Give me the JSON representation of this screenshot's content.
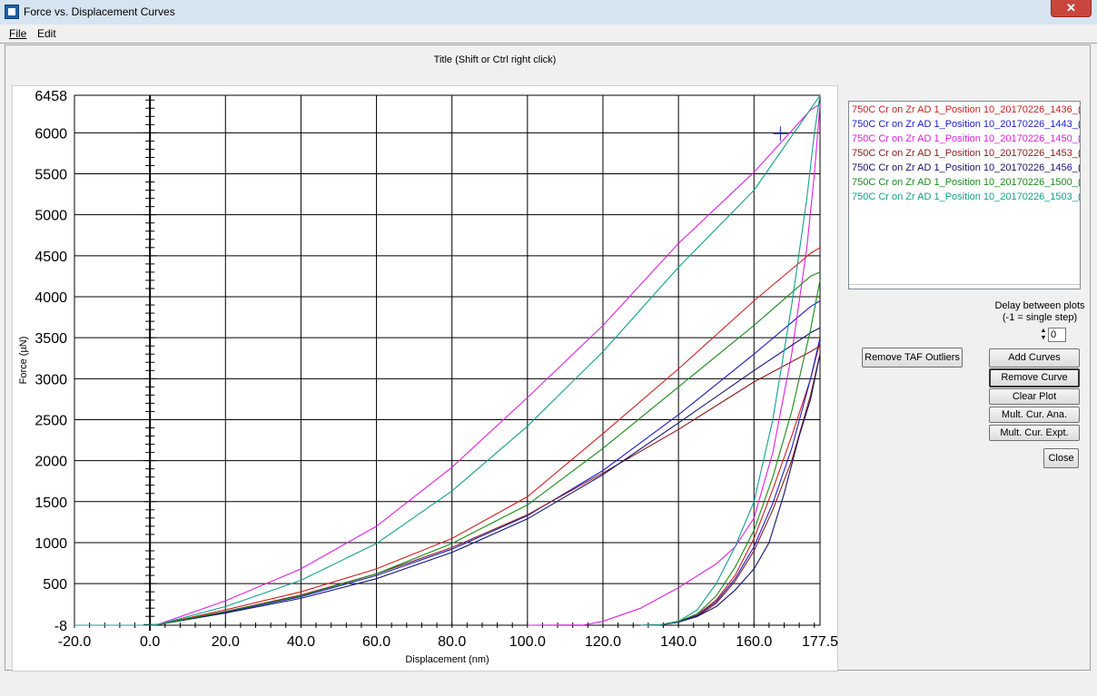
{
  "window": {
    "title": "Force vs. Displacement Curves",
    "close_glyph": "✕"
  },
  "menu": {
    "items": [
      "File",
      "Edit"
    ]
  },
  "plot_title_hint": "Title  (Shift or Ctrl right click)",
  "curve_list": [
    {
      "label": "750C Cr on Zr AD 1_Position 10_20170226_1436_(",
      "color": "#d21e1e"
    },
    {
      "label": "750C Cr on Zr AD 1_Position 10_20170226_1443_(",
      "color": "#1d1dc8"
    },
    {
      "label": "750C Cr on Zr AD 1_Position 10_20170226_1450_(",
      "color": "#e020e0"
    },
    {
      "label": "750C Cr on Zr AD 1_Position 10_20170226_1453_(",
      "color": "#8b1a1a"
    },
    {
      "label": "750C Cr on Zr AD 1_Position 10_20170226_1456_(",
      "color": "#14146e"
    },
    {
      "label": "750C Cr on Zr AD 1_Position 10_20170226_1500_(",
      "color": "#1a8a1a"
    },
    {
      "label": "750C Cr on Zr AD 1_Position 10_20170226_1503_(",
      "color": "#12a08c"
    }
  ],
  "delay": {
    "line1": "Delay between plots",
    "line2": "(-1 = single step)",
    "value": "0"
  },
  "buttons": {
    "remove_taf": "Remove TAF Outliers",
    "add_curves": "Add Curves",
    "remove_curve": "Remove Curve",
    "clear_plot": "Clear Plot",
    "mult_ana": "Mult. Cur. Ana.",
    "mult_expt": "Mult. Cur. Expt.",
    "close": "Close"
  },
  "chart_data": {
    "type": "line",
    "xlabel": "Displacement (nm)",
    "ylabel": "Force (µN)",
    "xlim": [
      -20.0,
      177.5
    ],
    "ylim": [
      -8,
      6458
    ],
    "x_ticks": [
      "-20.0",
      "0.0",
      "20.0",
      "40.0",
      "60.0",
      "80.0",
      "100.0",
      "120.0",
      "140.0",
      "160.0",
      "177.5"
    ],
    "x_tick_values": [
      -20,
      0,
      20,
      40,
      60,
      80,
      100,
      120,
      140,
      160,
      177.5
    ],
    "y_ticks": [
      "-8",
      "500",
      "1000",
      "1500",
      "2000",
      "2500",
      "3000",
      "3500",
      "4000",
      "4500",
      "5000",
      "5500",
      "6000",
      "6458"
    ],
    "y_tick_values": [
      -8,
      500,
      1000,
      1500,
      2000,
      2500,
      3000,
      3500,
      4000,
      4500,
      5000,
      5500,
      6000,
      6458
    ],
    "grid": true,
    "cursor_marker": {
      "x": 167,
      "y": 5990
    },
    "series": [
      {
        "color": "#d21e1e",
        "loading": [
          [
            -20,
            -8
          ],
          [
            0,
            -8
          ],
          [
            2,
            0
          ],
          [
            20,
            180
          ],
          [
            40,
            400
          ],
          [
            60,
            680
          ],
          [
            80,
            1050
          ],
          [
            100,
            1560
          ],
          [
            120,
            2330
          ],
          [
            140,
            3120
          ],
          [
            160,
            3950
          ],
          [
            175,
            4530
          ],
          [
            177.5,
            4600
          ]
        ],
        "unloading": [
          [
            177.5,
            3450
          ],
          [
            175,
            3000
          ],
          [
            170,
            2300
          ],
          [
            165,
            1650
          ],
          [
            160,
            1050
          ],
          [
            155,
            600
          ],
          [
            150,
            300
          ],
          [
            145,
            120
          ],
          [
            140,
            40
          ],
          [
            135,
            -5
          ],
          [
            130,
            -8
          ]
        ]
      },
      {
        "color": "#1d1dc8",
        "loading": [
          [
            -20,
            -8
          ],
          [
            0,
            -8
          ],
          [
            2,
            0
          ],
          [
            20,
            150
          ],
          [
            40,
            340
          ],
          [
            60,
            600
          ],
          [
            80,
            920
          ],
          [
            100,
            1330
          ],
          [
            120,
            1880
          ],
          [
            140,
            2560
          ],
          [
            160,
            3300
          ],
          [
            175,
            3880
          ],
          [
            177.5,
            3950
          ]
        ],
        "unloading": [
          [
            177.5,
            3500
          ],
          [
            175,
            3000
          ],
          [
            170,
            2150
          ],
          [
            165,
            1480
          ],
          [
            160,
            950
          ],
          [
            155,
            560
          ],
          [
            150,
            280
          ],
          [
            145,
            110
          ],
          [
            140,
            30
          ],
          [
            135,
            -5
          ],
          [
            130,
            -8
          ]
        ]
      },
      {
        "color": "#e020e0",
        "loading": [
          [
            -20,
            -8
          ],
          [
            0,
            -8
          ],
          [
            2,
            0
          ],
          [
            20,
            290
          ],
          [
            40,
            680
          ],
          [
            60,
            1200
          ],
          [
            80,
            1920
          ],
          [
            100,
            2770
          ],
          [
            120,
            3650
          ],
          [
            140,
            4650
          ],
          [
            160,
            5520
          ],
          [
            175,
            6280
          ],
          [
            177.5,
            6350
          ]
        ],
        "unloading": [
          [
            177.5,
            6350
          ],
          [
            176,
            5500
          ],
          [
            174,
            4600
          ],
          [
            170,
            3300
          ],
          [
            165,
            2100
          ],
          [
            160,
            1300
          ],
          [
            155,
            950
          ],
          [
            150,
            740
          ],
          [
            140,
            450
          ],
          [
            130,
            200
          ],
          [
            120,
            40
          ],
          [
            115,
            -5
          ],
          [
            100,
            -8
          ]
        ]
      },
      {
        "color": "#8b1a1a",
        "loading": [
          [
            -20,
            -8
          ],
          [
            0,
            -8
          ],
          [
            2,
            0
          ],
          [
            20,
            160
          ],
          [
            40,
            360
          ],
          [
            60,
            620
          ],
          [
            80,
            940
          ],
          [
            100,
            1340
          ],
          [
            120,
            1850
          ],
          [
            140,
            2380
          ],
          [
            160,
            2960
          ],
          [
            175,
            3330
          ],
          [
            177.5,
            3400
          ]
        ],
        "unloading": [
          [
            177.5,
            3300
          ],
          [
            175,
            2800
          ],
          [
            170,
            2000
          ],
          [
            165,
            1400
          ],
          [
            160,
            900
          ],
          [
            155,
            530
          ],
          [
            150,
            260
          ],
          [
            145,
            100
          ],
          [
            140,
            30
          ],
          [
            135,
            -5
          ],
          [
            130,
            -8
          ]
        ]
      },
      {
        "color": "#14146e",
        "loading": [
          [
            -20,
            -8
          ],
          [
            0,
            -8
          ],
          [
            2,
            0
          ],
          [
            20,
            140
          ],
          [
            40,
            320
          ],
          [
            60,
            560
          ],
          [
            80,
            880
          ],
          [
            100,
            1290
          ],
          [
            120,
            1830
          ],
          [
            140,
            2460
          ],
          [
            160,
            3100
          ],
          [
            175,
            3560
          ],
          [
            177.5,
            3620
          ]
        ],
        "unloading": [
          [
            177.5,
            3300
          ],
          [
            175,
            2750
          ],
          [
            172,
            2300
          ],
          [
            168,
            1600
          ],
          [
            164,
            1000
          ],
          [
            160,
            680
          ],
          [
            155,
            420
          ],
          [
            150,
            220
          ],
          [
            145,
            100
          ],
          [
            140,
            30
          ],
          [
            135,
            -5
          ],
          [
            130,
            -8
          ]
        ]
      },
      {
        "color": "#1a8a1a",
        "loading": [
          [
            -20,
            -8
          ],
          [
            0,
            -8
          ],
          [
            2,
            0
          ],
          [
            20,
            160
          ],
          [
            40,
            350
          ],
          [
            60,
            620
          ],
          [
            80,
            990
          ],
          [
            100,
            1460
          ],
          [
            120,
            2150
          ],
          [
            140,
            2900
          ],
          [
            160,
            3650
          ],
          [
            175,
            4250
          ],
          [
            177.5,
            4300
          ]
        ],
        "unloading": [
          [
            177.5,
            4200
          ],
          [
            175,
            3600
          ],
          [
            170,
            2600
          ],
          [
            165,
            1800
          ],
          [
            160,
            1150
          ],
          [
            155,
            700
          ],
          [
            150,
            350
          ],
          [
            145,
            130
          ],
          [
            140,
            40
          ],
          [
            135,
            -5
          ],
          [
            130,
            -8
          ]
        ]
      },
      {
        "color": "#12a08c",
        "loading": [
          [
            -20,
            -8
          ],
          [
            0,
            -8
          ],
          [
            2,
            0
          ],
          [
            20,
            220
          ],
          [
            40,
            540
          ],
          [
            60,
            990
          ],
          [
            80,
            1630
          ],
          [
            100,
            2420
          ],
          [
            120,
            3330
          ],
          [
            140,
            4360
          ],
          [
            160,
            5300
          ],
          [
            175,
            6290
          ],
          [
            177.5,
            6458
          ]
        ],
        "unloading": [
          [
            177.5,
            6458
          ],
          [
            176,
            6000
          ],
          [
            174,
            5200
          ],
          [
            170,
            3900
          ],
          [
            165,
            2500
          ],
          [
            160,
            1500
          ],
          [
            155,
            950
          ],
          [
            150,
            500
          ],
          [
            145,
            180
          ],
          [
            140,
            40
          ],
          [
            135,
            -5
          ],
          [
            130,
            -8
          ]
        ]
      }
    ]
  }
}
